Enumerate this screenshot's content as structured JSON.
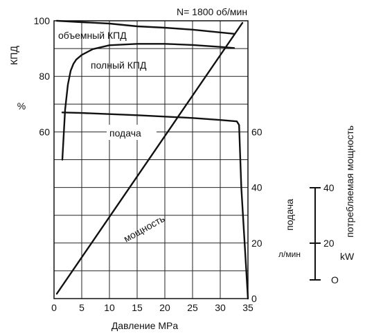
{
  "chart_data": {
    "type": "line",
    "title": "N= 1800 об/мин",
    "xlabel": "Давление  MPa",
    "xlim": [
      0,
      35
    ],
    "x_ticks": [
      0,
      5,
      10,
      15,
      20,
      25,
      30,
      35
    ],
    "grid": true,
    "left_axis": {
      "label": "КПД",
      "unit": "%",
      "ylim": [
        0,
        100
      ],
      "tick_labels": [
        "60",
        "80",
        "100"
      ]
    },
    "inner_right_axis": {
      "label": "подача",
      "unit": "л/мин",
      "ylim": [
        0,
        100
      ],
      "tick_labels": [
        "0",
        "20",
        "40",
        "60"
      ]
    },
    "outer_right_axis": {
      "label": "потребляемая мощность",
      "unit": "kW",
      "ylim": [
        0,
        40
      ],
      "tick_labels": [
        "O",
        "20",
        "40"
      ]
    },
    "series": [
      {
        "name": "объемный КПД",
        "axis": "left",
        "x": [
          0.5,
          5,
          10,
          15,
          20,
          25,
          30,
          32.5
        ],
        "y": [
          100,
          99.5,
          99,
          98,
          97.5,
          96.8,
          95.8,
          95.3
        ]
      },
      {
        "name": "полный КПД",
        "axis": "left",
        "x": [
          1.5,
          2,
          2.5,
          3,
          3.5,
          4,
          5,
          7,
          10,
          15,
          20,
          25,
          30,
          32.5
        ],
        "y": [
          50,
          68,
          77,
          82,
          84.5,
          86,
          87.7,
          89.8,
          91.2,
          91.7,
          91.7,
          91.3,
          90.6,
          90.2
        ]
      },
      {
        "name": "подача",
        "axis": "inner_right",
        "x": [
          1.5,
          5,
          10,
          15,
          20,
          25,
          30,
          33,
          33.4,
          33.8,
          35
        ],
        "y": [
          67,
          66.8,
          66.4,
          66,
          65.5,
          65,
          64.3,
          63.8,
          62.5,
          40,
          0
        ]
      },
      {
        "name": "мощность",
        "axis": "outer_right",
        "x": [
          0.5,
          34
        ],
        "y": [
          0.7,
          39.7
        ]
      }
    ]
  }
}
